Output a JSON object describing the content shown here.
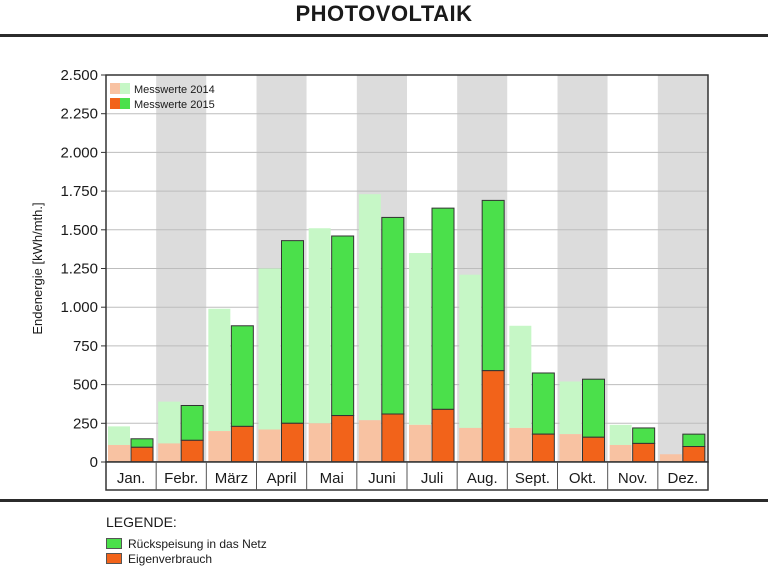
{
  "title": "PHOTOVOLTAIK",
  "legend": {
    "heading": "LEGENDE:",
    "items": [
      {
        "label": "Rückspeisung in das Netz",
        "color": "#4be04b"
      },
      {
        "label": "Eigenverbrauch",
        "color": "#f2631a"
      }
    ]
  },
  "chart_data": {
    "type": "bar",
    "ylabel": "Endenergie [kWh/mth.]",
    "xlabel": "",
    "ylim": [
      0,
      2500
    ],
    "yticks": [
      0,
      250,
      500,
      750,
      1000,
      1250,
      1500,
      1750,
      2000,
      2250,
      2500
    ],
    "ytick_labels": [
      "0",
      "250",
      "500",
      "750",
      "1.000",
      "1.250",
      "1.500",
      "1.750",
      "2.000",
      "2.250",
      "2.500"
    ],
    "categories": [
      "Jan.",
      "Febr.",
      "März",
      "April",
      "Mai",
      "Juni",
      "Juli",
      "Aug.",
      "Sept.",
      "Okt.",
      "Nov.",
      "Dez."
    ],
    "stacked": true,
    "legend_position": "top-left",
    "background_bands": "alternating grey/white per month",
    "years": [
      {
        "name": "Messwerte 2014",
        "colors": {
          "eigenverbrauch": "#f8c2a2",
          "rueckspeisung": "#c6f7c6"
        },
        "eigenverbrauch": [
          110,
          120,
          200,
          210,
          250,
          270,
          240,
          220,
          220,
          180,
          110,
          50
        ],
        "total": [
          230,
          390,
          990,
          1250,
          1510,
          1730,
          1350,
          1210,
          880,
          520,
          240,
          0
        ]
      },
      {
        "name": "Messwerte 2015",
        "colors": {
          "eigenverbrauch": "#f2631a",
          "rueckspeisung": "#4be04b"
        },
        "eigenverbrauch": [
          95,
          140,
          230,
          250,
          300,
          310,
          340,
          590,
          180,
          160,
          120,
          100
        ],
        "total": [
          150,
          365,
          880,
          1430,
          1460,
          1580,
          1640,
          1690,
          575,
          535,
          220,
          180
        ]
      }
    ]
  }
}
